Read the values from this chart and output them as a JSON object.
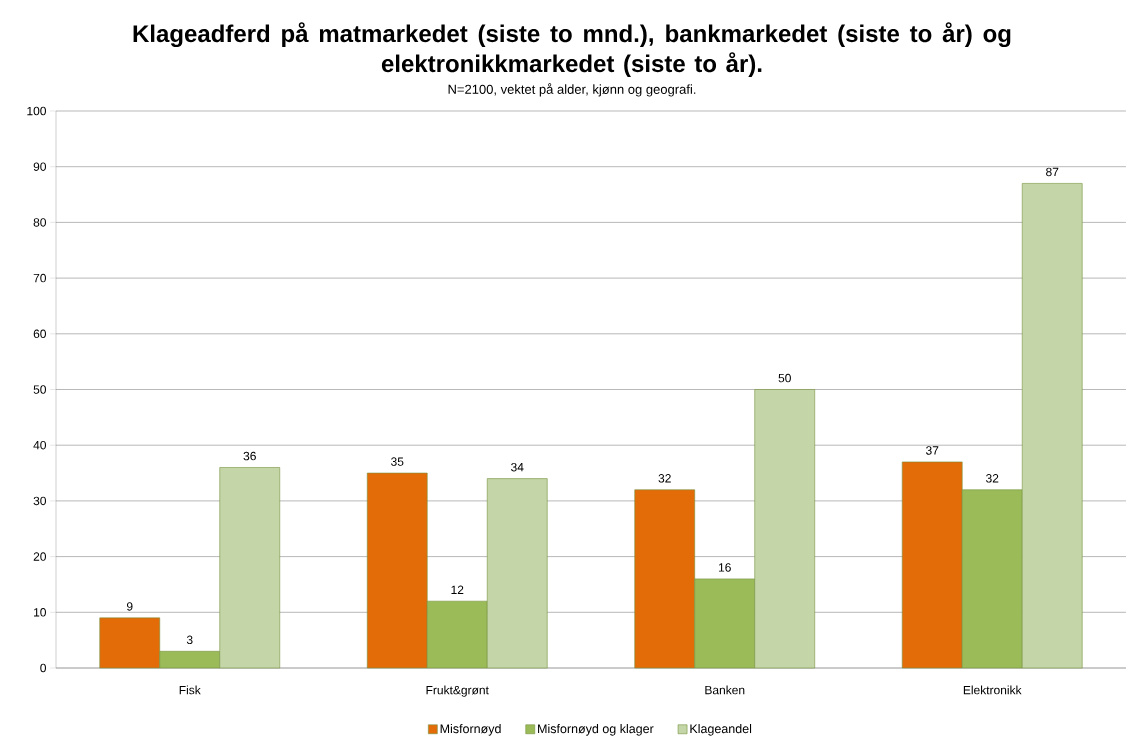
{
  "chart_data": {
    "type": "bar",
    "title": "Klageadferd på matmarkedet (siste to mnd.), bankmarkedet (siste to år) og elektronikkmarkedet (siste to år).",
    "subtitle": "N=2100, vektet på alder, kjønn og geografi.",
    "categories": [
      "Fisk",
      "Frukt&grønt",
      "Banken",
      "Elektronikk"
    ],
    "series": [
      {
        "name": "Misfornøyd",
        "color": "#e36c09",
        "values": [
          9,
          35,
          32,
          37
        ]
      },
      {
        "name": "Misfornøyd og klager",
        "color": "#9bbb59",
        "values": [
          3,
          12,
          16,
          32
        ]
      },
      {
        "name": "Klageandel",
        "color": "#c4d6a8",
        "values": [
          36,
          34,
          50,
          87
        ]
      }
    ],
    "ylim": [
      0,
      100
    ],
    "yticks": [
      0,
      10,
      20,
      30,
      40,
      50,
      60,
      70,
      80,
      90,
      100
    ],
    "grid": "y",
    "legend": "bottom",
    "data_labels": true
  }
}
